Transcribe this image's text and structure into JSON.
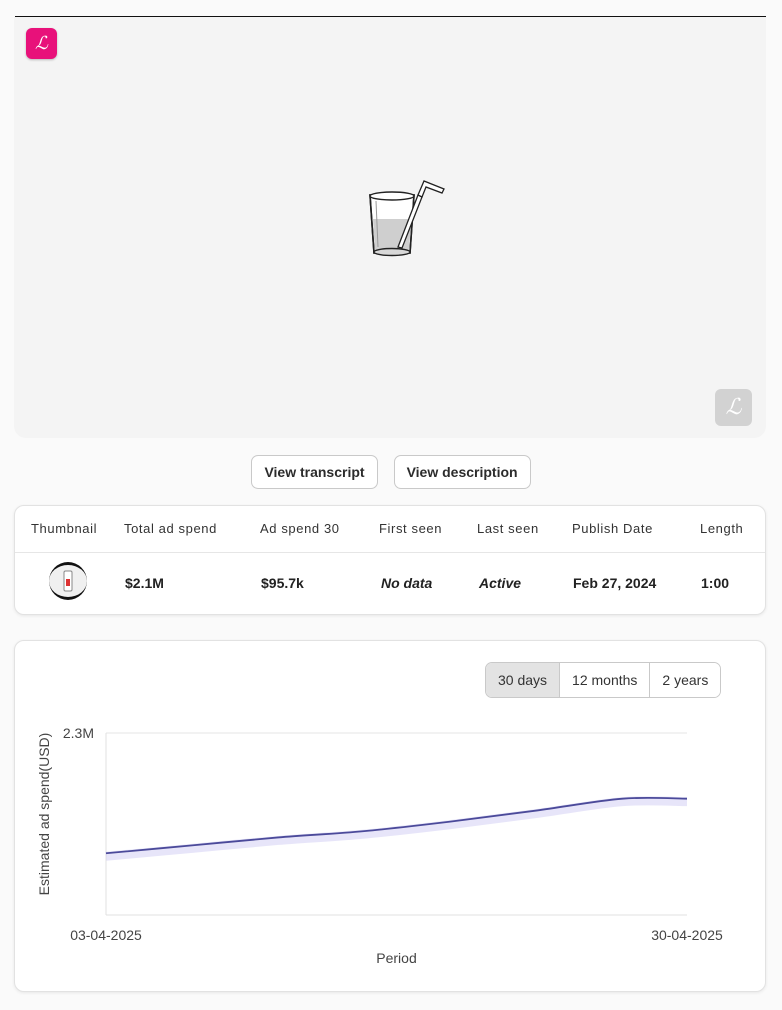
{
  "video": {
    "logo_letter": "ℒ",
    "corner_logo_letter": "ℒ",
    "placeholder_icon": "glass-with-straw-icon"
  },
  "buttons": {
    "view_transcript": "View transcript",
    "view_description": "View description"
  },
  "table": {
    "headers": [
      "Thumbnail",
      "Total ad spend",
      "Ad spend 30",
      "First seen",
      "Last seen",
      "Publish Date",
      "Length"
    ],
    "row": {
      "total_ad_spend": "$2.1M",
      "ad_spend_30": "$95.7k",
      "first_seen": "No data",
      "last_seen": "Active",
      "publish_date": "Feb 27, 2024",
      "length": "1:00"
    }
  },
  "chart_controls": {
    "options": [
      "30 days",
      "12 months",
      "2 years"
    ],
    "selected": "30 days"
  },
  "chart_data": {
    "type": "line",
    "title": "",
    "xlabel": "Period",
    "ylabel": "Estimated ad spend(USD)",
    "x_tick_labels": [
      "03-04-2025",
      "30-04-2025"
    ],
    "y_tick_labels": [
      "2.3M"
    ],
    "ylim": [
      0,
      2300000
    ],
    "grid": true,
    "line_color": "#4b4a9a",
    "series": [
      {
        "values": [
          {
            "x": "03-04-2025",
            "y": 780000
          },
          {
            "x": "07-04-2025",
            "y": 880000
          },
          {
            "x": "11-04-2025",
            "y": 980000
          },
          {
            "x": "15-04-2025",
            "y": 1060000
          },
          {
            "x": "19-04-2025",
            "y": 1180000
          },
          {
            "x": "23-04-2025",
            "y": 1320000
          },
          {
            "x": "27-04-2025",
            "y": 1470000
          },
          {
            "x": "30-04-2025",
            "y": 1470000
          }
        ]
      }
    ]
  }
}
